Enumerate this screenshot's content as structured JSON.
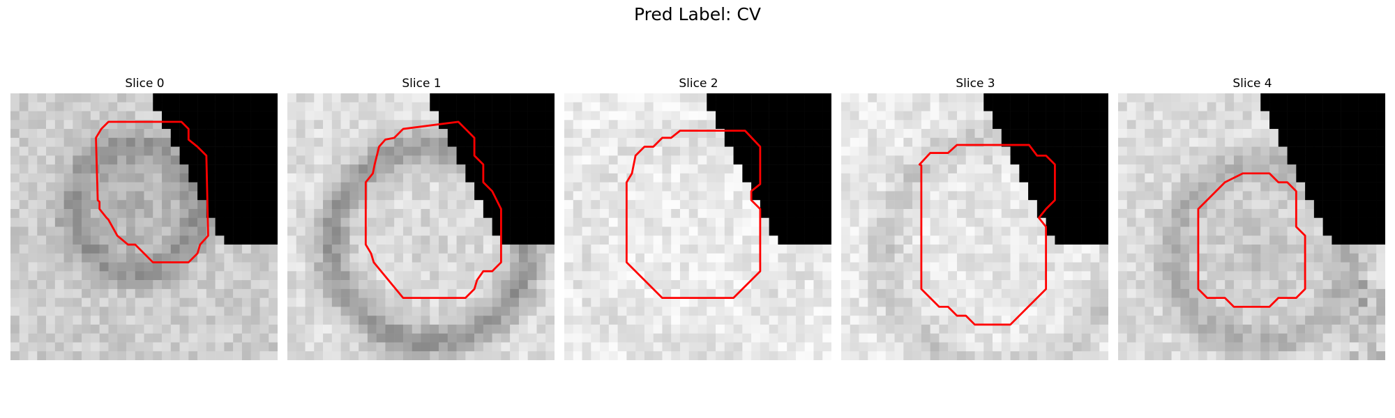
{
  "figure": {
    "title": "Pred Label: CV"
  },
  "panels": [
    {
      "title": "Slice 0"
    },
    {
      "title": "Slice 1"
    },
    {
      "title": "Slice 2"
    },
    {
      "title": "Slice 3"
    },
    {
      "title": "Slice 4"
    }
  ],
  "colors": {
    "contour": "#ff0000",
    "mask": "#000000"
  }
}
